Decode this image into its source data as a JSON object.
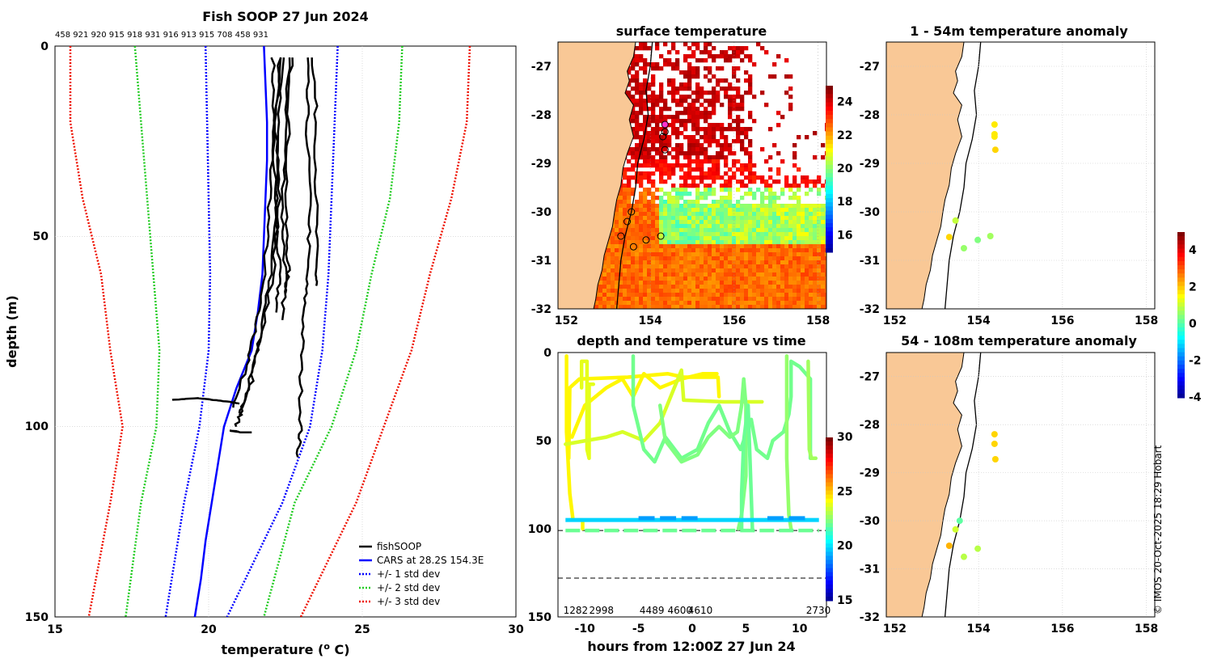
{
  "colors": {
    "fishsoop": "#000000",
    "cars": "#0000ff",
    "std1": "#0000ff",
    "std2": "#22cc22",
    "std3": "#ee1100",
    "land": "#f9c896",
    "grid": "#c8c8c8"
  },
  "watermark": "© IMOS 20-Oct-2025 18:29 Hobart",
  "chart_data": [
    {
      "id": "profile",
      "type": "line",
      "title": "Fish SOOP 27 Jun 2024",
      "xlabel": "temperature (",
      "xlabel_sup": "o",
      "xlabel_tail": " C)",
      "ylabel": "depth (m)",
      "xlim": [
        15,
        30
      ],
      "ylim": [
        150,
        0
      ],
      "xticks": [
        "15",
        "20",
        "25",
        "30"
      ],
      "yticks": [
        "0",
        "50",
        "100",
        "150"
      ],
      "top_labels": "458 921 920 915 918 931 916 913 915 708 458 931",
      "legend": {
        "position": "bottom-right",
        "entries": [
          "fishSOOP",
          "CARS at 28.2S 154.3E",
          "+/- 1 std dev",
          "+/- 2 std dev",
          "+/- 3 std dev"
        ]
      },
      "series": [
        {
          "name": "CARS",
          "depth": [
            0,
            10,
            20,
            30,
            40,
            50,
            60,
            70,
            80,
            90,
            100,
            110,
            120,
            130,
            140,
            150
          ],
          "temp": [
            21.8,
            21.85,
            21.9,
            21.9,
            21.85,
            21.8,
            21.75,
            21.6,
            21.4,
            20.9,
            20.5,
            20.3,
            20.1,
            19.9,
            19.75,
            19.55
          ]
        },
        {
          "name": "minus1",
          "depth": [
            0,
            20,
            40,
            60,
            80,
            100,
            120,
            150
          ],
          "temp": [
            19.9,
            19.95,
            20.0,
            20.05,
            20.0,
            19.7,
            19.2,
            18.6
          ]
        },
        {
          "name": "plus1",
          "depth": [
            0,
            20,
            40,
            60,
            80,
            100,
            120,
            150
          ],
          "temp": [
            24.2,
            24.1,
            24.0,
            23.9,
            23.7,
            23.3,
            22.4,
            20.6
          ]
        },
        {
          "name": "minus2",
          "depth": [
            0,
            20,
            40,
            60,
            80,
            100,
            120,
            150
          ],
          "temp": [
            17.6,
            17.8,
            18.0,
            18.2,
            18.4,
            18.3,
            17.8,
            17.3
          ]
        },
        {
          "name": "plus2",
          "depth": [
            0,
            20,
            40,
            60,
            80,
            100,
            120,
            150
          ],
          "temp": [
            26.3,
            26.2,
            25.9,
            25.3,
            24.8,
            24.0,
            22.8,
            21.8
          ]
        },
        {
          "name": "minus3",
          "depth": [
            0,
            20,
            40,
            60,
            80,
            100,
            120,
            150
          ],
          "temp": [
            15.5,
            15.5,
            15.9,
            16.5,
            16.8,
            17.2,
            16.8,
            16.1
          ]
        },
        {
          "name": "plus3",
          "depth": [
            0,
            20,
            40,
            60,
            80,
            100,
            120,
            150
          ],
          "temp": [
            28.5,
            28.4,
            27.9,
            27.2,
            26.6,
            25.7,
            24.8,
            23.0
          ]
        }
      ],
      "fish_profiles": [
        {
          "depth": [
            3,
            20,
            40,
            60,
            75,
            85,
            95
          ],
          "temp": [
            22.1,
            22.1,
            22.0,
            21.8,
            21.5,
            21.2,
            20.8
          ]
        },
        {
          "depth": [
            3,
            20,
            40,
            60,
            75,
            88,
            97
          ],
          "temp": [
            22.3,
            22.3,
            22.2,
            22.0,
            21.7,
            21.4,
            21.0
          ]
        },
        {
          "depth": [
            3,
            20,
            40,
            60,
            80,
            95,
            100
          ],
          "temp": [
            22.4,
            22.2,
            22.3,
            22.1,
            21.6,
            21.1,
            20.9
          ]
        },
        {
          "depth": [
            3,
            25,
            45,
            60,
            70
          ],
          "temp": [
            22.3,
            22.1,
            22.2,
            22.3,
            22.2
          ]
        },
        {
          "depth": [
            3,
            25,
            45,
            60,
            72
          ],
          "temp": [
            22.6,
            22.5,
            22.4,
            22.5,
            22.4
          ]
        },
        {
          "depth": [
            3,
            20,
            45,
            58,
            65
          ],
          "temp": [
            22.7,
            22.6,
            22.5,
            22.6,
            22.5
          ]
        },
        {
          "depth": [
            3,
            20,
            45,
            60,
            63
          ],
          "temp": [
            23.4,
            23.5,
            23.5,
            23.5,
            23.5
          ]
        },
        {
          "depth": [
            3,
            20,
            45,
            60,
            70,
            85,
            100,
            108
          ],
          "temp": [
            23.2,
            23.2,
            23.3,
            23.2,
            23.1,
            23.0,
            23.0,
            22.9
          ]
        },
        {
          "depth": [
            93,
            92.5,
            93,
            93.5,
            94
          ],
          "temp": [
            18.8,
            19.6,
            20.2,
            20.7,
            21.0
          ]
        },
        {
          "depth": [
            101,
            101.5,
            101.5
          ],
          "temp": [
            20.7,
            21.0,
            21.4
          ]
        }
      ]
    },
    {
      "id": "sst",
      "type": "heatmap",
      "title": "surface temperature",
      "xlim": [
        151.8,
        158.2
      ],
      "ylim": [
        -32,
        -26.5
      ],
      "xticks": [
        "152",
        "154",
        "156",
        "158"
      ],
      "yticks": [
        "-27",
        "-28",
        "-29",
        "-30",
        "-31",
        "-32"
      ],
      "colorbar": {
        "min": 15,
        "max": 25,
        "ticks": [
          "16",
          "18",
          "20",
          "22",
          "24"
        ]
      },
      "stations": [
        [
          154.35,
          -28.2
        ],
        [
          154.35,
          -28.35
        ],
        [
          154.3,
          -28.45
        ],
        [
          154.35,
          -28.72
        ],
        [
          153.55,
          -30.0
        ],
        [
          153.45,
          -30.2
        ],
        [
          153.3,
          -30.5
        ],
        [
          153.6,
          -30.72
        ],
        [
          153.9,
          -30.58
        ],
        [
          154.25,
          -30.5
        ]
      ]
    },
    {
      "id": "timeseries",
      "type": "line",
      "title": "depth and temperature vs time",
      "xlabel": "hours from 12:00Z 27 Jun 24",
      "xlim": [
        -12.5,
        12.5
      ],
      "ylim": [
        150,
        0
      ],
      "xticks": [
        "-10",
        "-5",
        "0",
        "5",
        "10"
      ],
      "yticks": [
        "0",
        "50",
        "100",
        "150"
      ],
      "colorbar": {
        "min": 15,
        "max": 30,
        "ticks": [
          "15",
          "20",
          "25",
          "30"
        ]
      },
      "reference_depths": [
        101,
        128
      ],
      "bottom_labels": [
        {
          "text": "1282",
          "hour": -12.0
        },
        {
          "text": "2998",
          "hour": -9.6
        },
        {
          "text": "4489",
          "hour": -4.9
        },
        {
          "text": "4600",
          "hour": -2.3
        },
        {
          "text": "4610",
          "hour": -0.4
        },
        {
          "text": "2730",
          "hour": 10.6
        }
      ]
    },
    {
      "id": "anom_shallow",
      "type": "scatter",
      "title": "1 - 54m temperature anomaly",
      "xlim": [
        151.8,
        158.2
      ],
      "ylim": [
        -32,
        -26.5
      ],
      "xticks": [
        "152",
        "154",
        "156",
        "158"
      ],
      "yticks": [
        "-27",
        "-28",
        "-29",
        "-30",
        "-31",
        "-32"
      ],
      "points": [
        {
          "lon": 154.38,
          "lat": -28.2,
          "anom": 1.8
        },
        {
          "lon": 154.38,
          "lat": -28.4,
          "anom": 1.8
        },
        {
          "lon": 154.38,
          "lat": -28.45,
          "anom": 1.8
        },
        {
          "lon": 154.4,
          "lat": -28.72,
          "anom": 2.0
        },
        {
          "lon": 153.45,
          "lat": -30.18,
          "anom": 1.1
        },
        {
          "lon": 153.3,
          "lat": -30.52,
          "anom": 2.0
        },
        {
          "lon": 153.65,
          "lat": -30.75,
          "anom": 0.7
        },
        {
          "lon": 153.98,
          "lat": -30.58,
          "anom": 0.5
        },
        {
          "lon": 154.28,
          "lat": -30.5,
          "anom": 0.8
        }
      ]
    },
    {
      "id": "anom_deep",
      "type": "scatter",
      "title": "54 - 108m temperature anomaly",
      "xlim": [
        151.8,
        158.2
      ],
      "ylim": [
        -32,
        -26.5
      ],
      "xticks": [
        "152",
        "154",
        "156",
        "158"
      ],
      "yticks": [
        "-27",
        "-28",
        "-29",
        "-30",
        "-31",
        "-32"
      ],
      "colorbar": {
        "min": -4,
        "max": 5,
        "ticks": [
          "-4",
          "-2",
          "0",
          "2",
          "4"
        ]
      },
      "points": [
        {
          "lon": 154.38,
          "lat": -28.2,
          "anom": 2.0
        },
        {
          "lon": 154.38,
          "lat": -28.4,
          "anom": 2.0
        },
        {
          "lon": 154.4,
          "lat": -28.72,
          "anom": 2.0
        },
        {
          "lon": 153.55,
          "lat": -30.0,
          "anom": 0.2
        },
        {
          "lon": 153.45,
          "lat": -30.18,
          "anom": 1.2
        },
        {
          "lon": 153.3,
          "lat": -30.52,
          "anom": 2.3
        },
        {
          "lon": 153.65,
          "lat": -30.75,
          "anom": 1.0
        },
        {
          "lon": 153.98,
          "lat": -30.58,
          "anom": 1.0
        }
      ]
    }
  ]
}
